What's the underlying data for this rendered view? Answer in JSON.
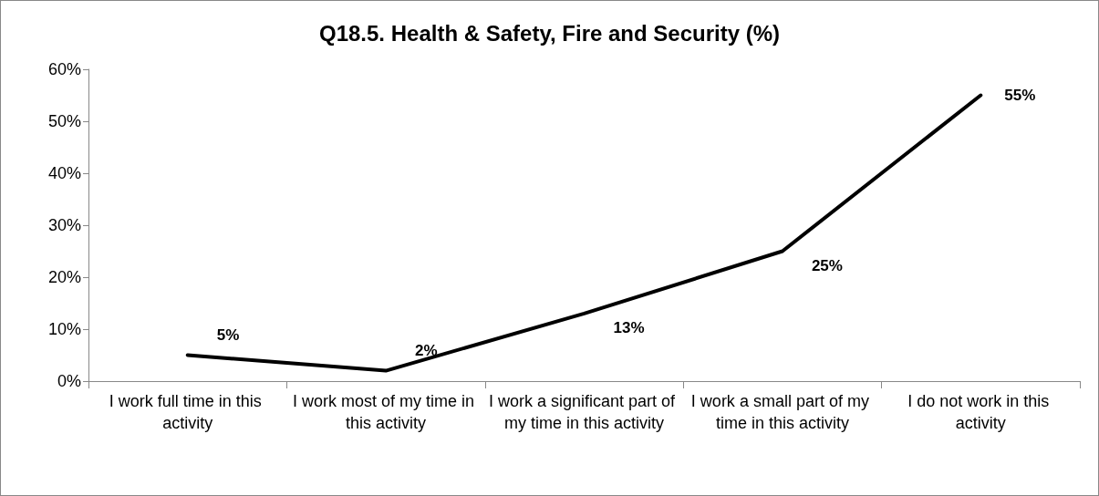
{
  "chart_data": {
    "type": "line",
    "title": "Q18.5. Health & Safety, Fire and Security (%)",
    "categories": [
      "I work full time in this activity",
      "I work most of my time in this activity",
      "I work a significant part of my time in this activity",
      "I work a small part of my time in this activity",
      "I do not work in this activity"
    ],
    "series": [
      {
        "color": "#000000",
        "values": [
          5,
          2,
          13,
          25,
          55
        ],
        "value_labels": [
          "5%",
          "2%",
          "13%",
          "25%",
          "55%"
        ]
      }
    ],
    "ylim": [
      0,
      60
    ],
    "yticks": [
      {
        "value": 0,
        "label": "0%"
      },
      {
        "value": 10,
        "label": "10%"
      },
      {
        "value": 20,
        "label": "20%"
      },
      {
        "value": 30,
        "label": "30%"
      },
      {
        "value": 40,
        "label": "40%"
      },
      {
        "value": 50,
        "label": "50%"
      },
      {
        "value": 60,
        "label": "60%"
      }
    ],
    "grid": false,
    "marker": "none",
    "line_style": "solid"
  }
}
